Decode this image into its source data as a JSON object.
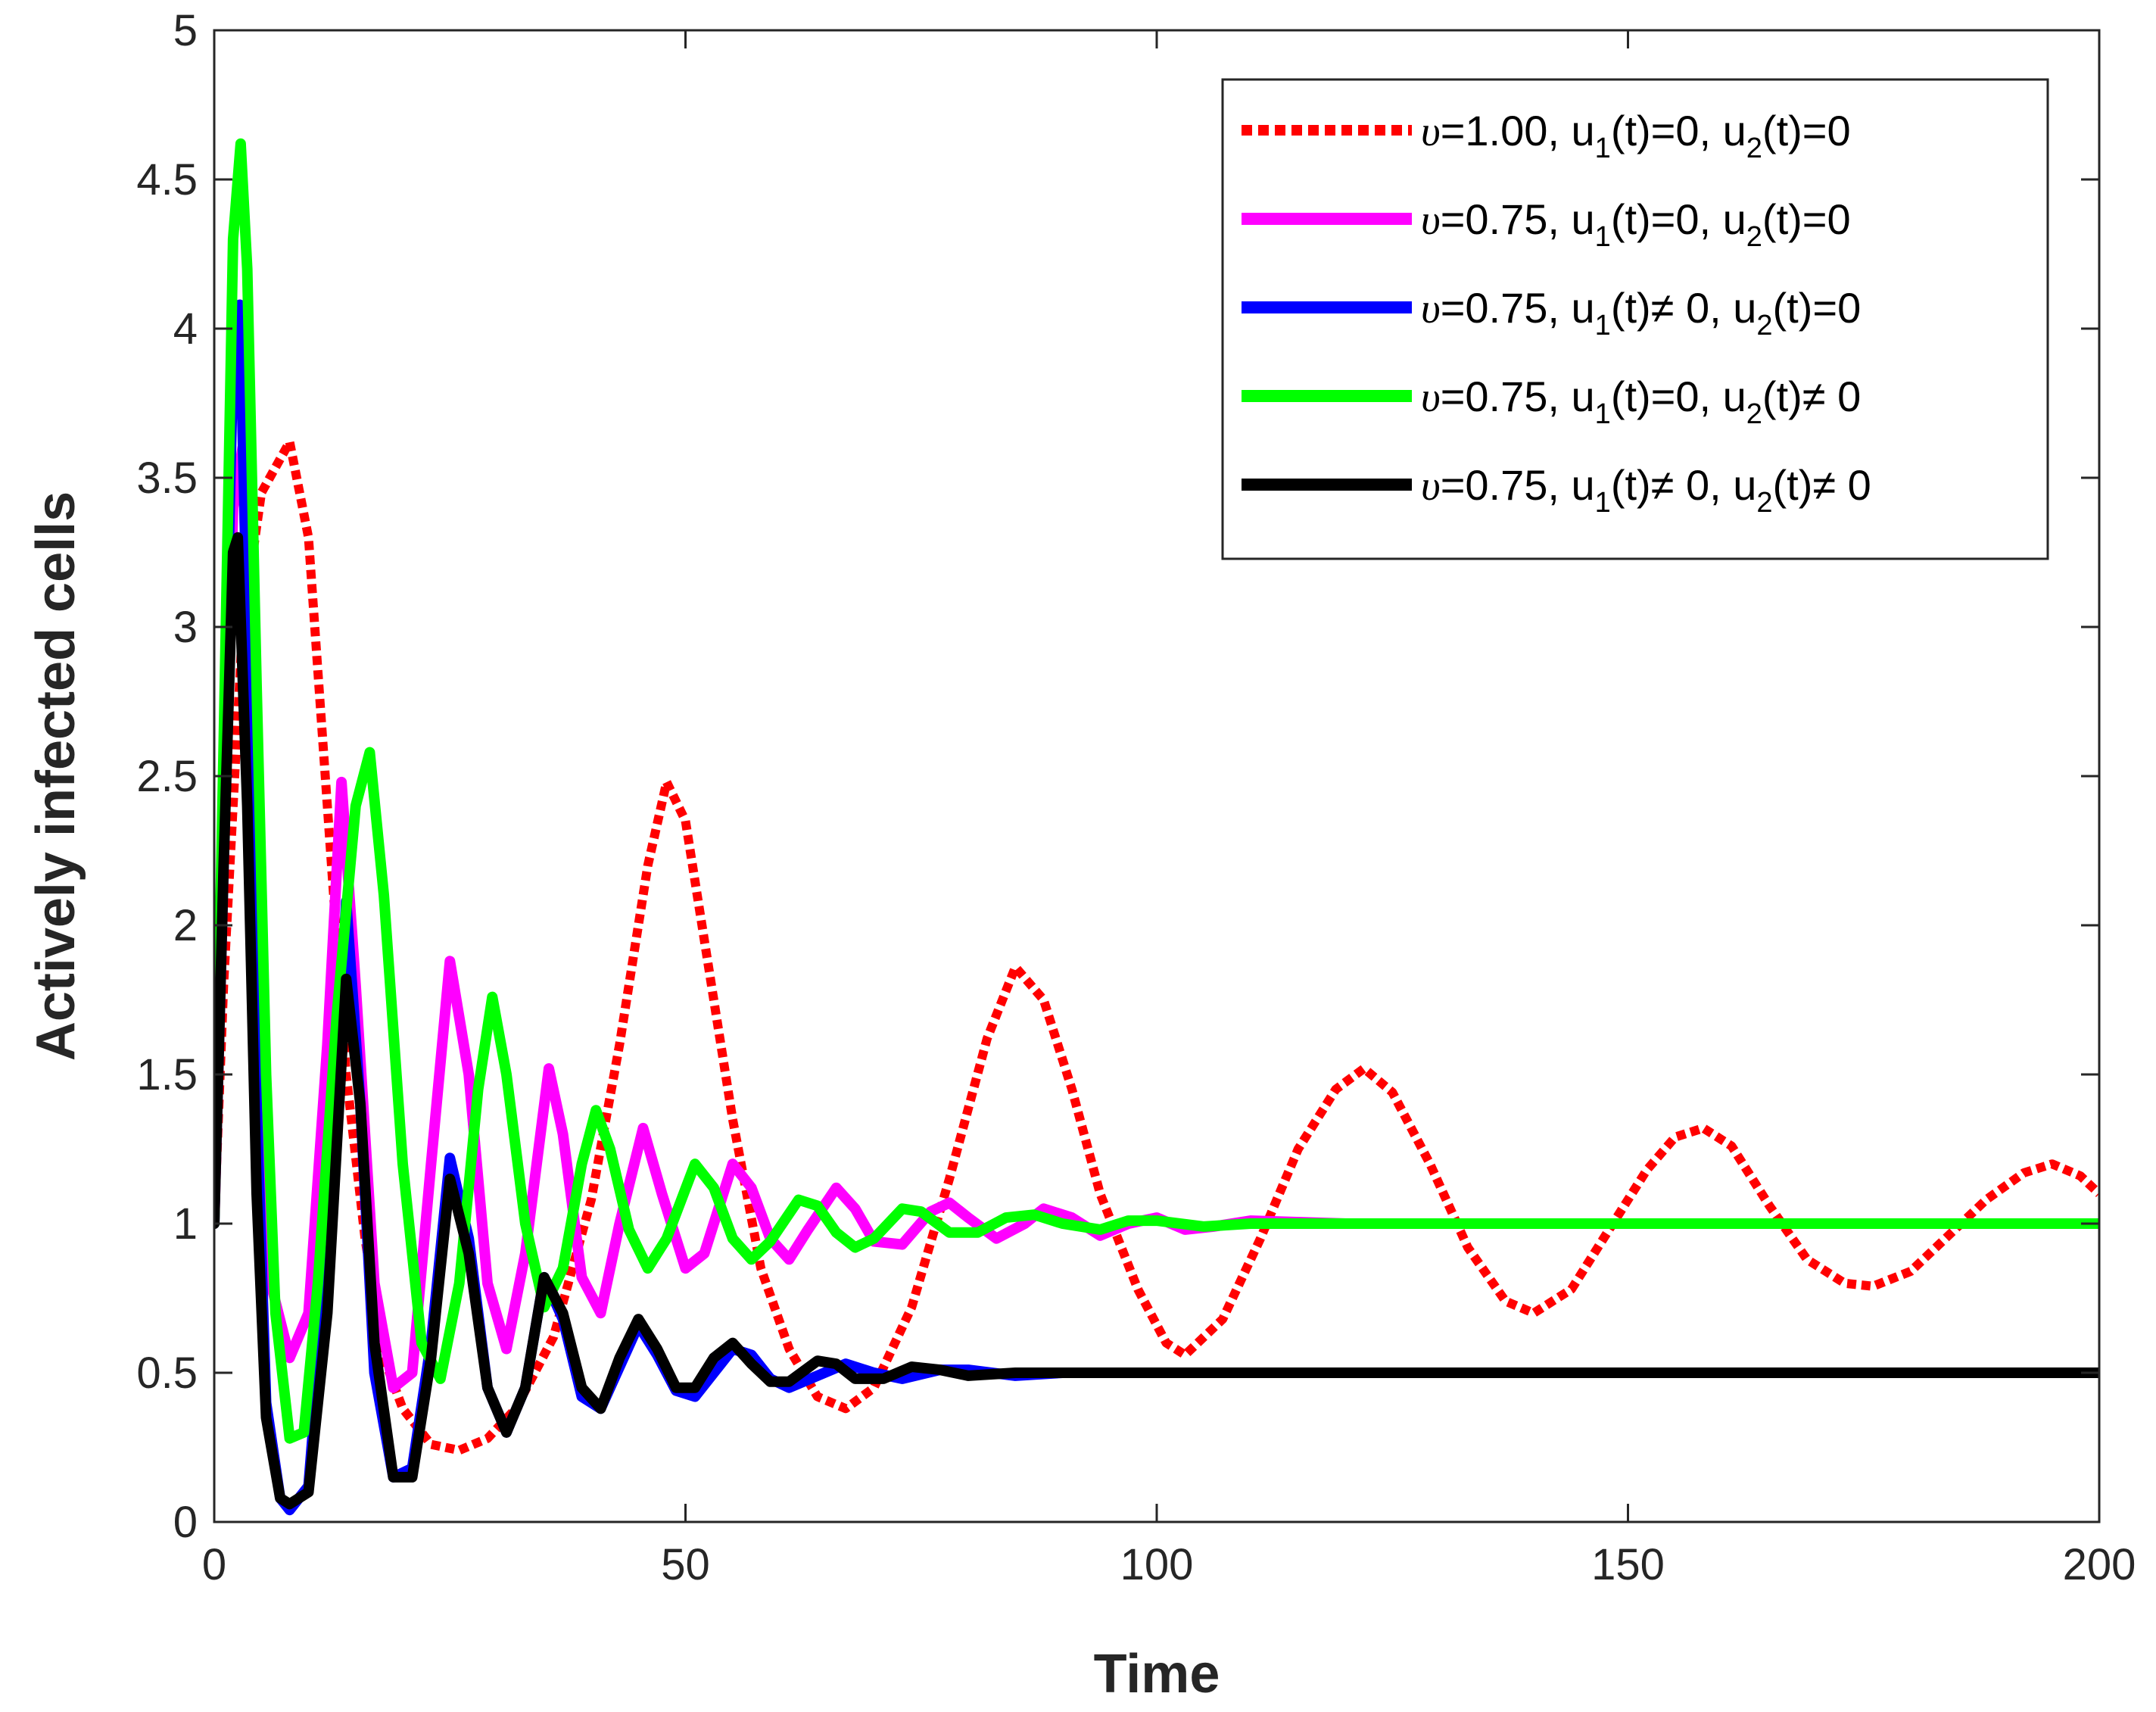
{
  "chart_data": {
    "type": "line",
    "title": "",
    "xlabel": "Time",
    "ylabel": "Actively infected cells",
    "xlim": [
      0,
      200
    ],
    "ylim": [
      0,
      5
    ],
    "xticks": [
      0,
      50,
      100,
      150,
      200
    ],
    "xtick_labels": [
      "0",
      "50",
      "100",
      "150",
      "200"
    ],
    "yticks": [
      0,
      0.5,
      1,
      1.5,
      2,
      2.5,
      3,
      3.5,
      4,
      4.5,
      5
    ],
    "ytick_labels": [
      "0",
      "0.5",
      "1",
      "1.5",
      "2",
      "2.5",
      "3",
      "3.5",
      "4",
      "4.5",
      "5"
    ],
    "grid": false,
    "legend_position": "top-right",
    "series": [
      {
        "name": "υ=1.00, u1(t)=0, u2(t)=0",
        "legend": {
          "nu": "υ",
          "pre": "=1.00, u",
          "sub1": "1",
          "mid": "(t)=0, u",
          "sub2": "2",
          "post": "(t)=0"
        },
        "color": "#ff0000",
        "style": "dotted",
        "points": [
          [
            0,
            1.0
          ],
          [
            1,
            1.8
          ],
          [
            3,
            3.0
          ],
          [
            5,
            3.45
          ],
          [
            8,
            3.62
          ],
          [
            10,
            3.3
          ],
          [
            12,
            2.4
          ],
          [
            14,
            1.5
          ],
          [
            16,
            0.95
          ],
          [
            18,
            0.55
          ],
          [
            20,
            0.38
          ],
          [
            23,
            0.26
          ],
          [
            26,
            0.24
          ],
          [
            29,
            0.28
          ],
          [
            32,
            0.38
          ],
          [
            36,
            0.62
          ],
          [
            40,
            1.08
          ],
          [
            43,
            1.6
          ],
          [
            46,
            2.2
          ],
          [
            48,
            2.48
          ],
          [
            50,
            2.35
          ],
          [
            52,
            1.95
          ],
          [
            55,
            1.35
          ],
          [
            58,
            0.85
          ],
          [
            61,
            0.58
          ],
          [
            64,
            0.42
          ],
          [
            67,
            0.38
          ],
          [
            70,
            0.45
          ],
          [
            74,
            0.72
          ],
          [
            78,
            1.15
          ],
          [
            82,
            1.62
          ],
          [
            85,
            1.86
          ],
          [
            88,
            1.75
          ],
          [
            91,
            1.45
          ],
          [
            94,
            1.1
          ],
          [
            98,
            0.78
          ],
          [
            101,
            0.6
          ],
          [
            103,
            0.56
          ],
          [
            107,
            0.68
          ],
          [
            111,
            0.95
          ],
          [
            115,
            1.25
          ],
          [
            119,
            1.45
          ],
          [
            122,
            1.52
          ],
          [
            125,
            1.44
          ],
          [
            129,
            1.2
          ],
          [
            133,
            0.92
          ],
          [
            137,
            0.74
          ],
          [
            140,
            0.7
          ],
          [
            144,
            0.78
          ],
          [
            148,
            0.98
          ],
          [
            152,
            1.18
          ],
          [
            155,
            1.29
          ],
          [
            158,
            1.32
          ],
          [
            161,
            1.26
          ],
          [
            165,
            1.06
          ],
          [
            169,
            0.88
          ],
          [
            173,
            0.8
          ],
          [
            176,
            0.79
          ],
          [
            180,
            0.84
          ],
          [
            184,
            0.96
          ],
          [
            188,
            1.08
          ],
          [
            192,
            1.17
          ],
          [
            195,
            1.2
          ],
          [
            198,
            1.16
          ],
          [
            200,
            1.1
          ]
        ]
      },
      {
        "name": "υ=0.75, u1(t)=0, u2(t)=0",
        "legend": {
          "nu": "υ",
          "pre": "=0.75, u",
          "sub1": "1",
          "mid": "(t)=0, u",
          "sub2": "2",
          "post": "(t)=0"
        },
        "color": "#ff00ff",
        "style": "solid",
        "points": [
          [
            0,
            1.0
          ],
          [
            1,
            2.2
          ],
          [
            2,
            3.4
          ],
          [
            3,
            3.6
          ],
          [
            4,
            2.5
          ],
          [
            5,
            1.4
          ],
          [
            6,
            0.8
          ],
          [
            8,
            0.55
          ],
          [
            10,
            0.7
          ],
          [
            12,
            1.6
          ],
          [
            13.5,
            2.48
          ],
          [
            15,
            1.8
          ],
          [
            17,
            0.8
          ],
          [
            19,
            0.45
          ],
          [
            21,
            0.5
          ],
          [
            23,
            1.2
          ],
          [
            25,
            1.88
          ],
          [
            27,
            1.5
          ],
          [
            29,
            0.8
          ],
          [
            31,
            0.58
          ],
          [
            33,
            0.9
          ],
          [
            35.5,
            1.52
          ],
          [
            37,
            1.3
          ],
          [
            39,
            0.82
          ],
          [
            41,
            0.7
          ],
          [
            43,
            1.0
          ],
          [
            45.5,
            1.32
          ],
          [
            47.5,
            1.1
          ],
          [
            50,
            0.85
          ],
          [
            52,
            0.9
          ],
          [
            55,
            1.2
          ],
          [
            57,
            1.12
          ],
          [
            59,
            0.95
          ],
          [
            61,
            0.88
          ],
          [
            63,
            0.98
          ],
          [
            66,
            1.12
          ],
          [
            68,
            1.05
          ],
          [
            70,
            0.94
          ],
          [
            73,
            0.93
          ],
          [
            76,
            1.04
          ],
          [
            78,
            1.07
          ],
          [
            80,
            1.02
          ],
          [
            83,
            0.95
          ],
          [
            86,
            1.0
          ],
          [
            88,
            1.05
          ],
          [
            91,
            1.02
          ],
          [
            94,
            0.96
          ],
          [
            97,
            1.0
          ],
          [
            100,
            1.02
          ],
          [
            103,
            0.98
          ],
          [
            106,
            0.99
          ],
          [
            110,
            1.01
          ],
          [
            120,
            1.0
          ],
          [
            200,
            1.0
          ]
        ]
      },
      {
        "name": "υ=0.75, u1(t)≠ 0, u2(t)=0",
        "legend": {
          "nu": "υ",
          "pre": "=0.75, u",
          "sub1": "1",
          "mid": "(t)≠ 0, u",
          "sub2": "2",
          "post": "(t)=0"
        },
        "color": "#0000ff",
        "style": "solid",
        "points": [
          [
            0,
            1.0
          ],
          [
            1,
            2.5
          ],
          [
            2,
            3.9
          ],
          [
            2.7,
            4.08
          ],
          [
            3.5,
            3.0
          ],
          [
            4.5,
            1.4
          ],
          [
            5.5,
            0.4
          ],
          [
            7,
            0.08
          ],
          [
            8,
            0.04
          ],
          [
            10,
            0.12
          ],
          [
            12,
            0.9
          ],
          [
            14,
            2.08
          ],
          [
            15.5,
            1.4
          ],
          [
            17,
            0.5
          ],
          [
            19,
            0.15
          ],
          [
            21,
            0.18
          ],
          [
            23,
            0.6
          ],
          [
            25,
            1.22
          ],
          [
            27,
            0.95
          ],
          [
            29,
            0.45
          ],
          [
            31,
            0.3
          ],
          [
            33,
            0.45
          ],
          [
            35,
            0.82
          ],
          [
            37,
            0.68
          ],
          [
            39,
            0.42
          ],
          [
            41,
            0.38
          ],
          [
            43,
            0.52
          ],
          [
            45,
            0.66
          ],
          [
            47,
            0.56
          ],
          [
            49,
            0.44
          ],
          [
            51,
            0.42
          ],
          [
            53,
            0.5
          ],
          [
            55,
            0.58
          ],
          [
            57,
            0.56
          ],
          [
            59,
            0.48
          ],
          [
            61,
            0.45
          ],
          [
            64,
            0.49
          ],
          [
            67,
            0.53
          ],
          [
            70,
            0.5
          ],
          [
            73,
            0.48
          ],
          [
            77,
            0.51
          ],
          [
            80,
            0.51
          ],
          [
            85,
            0.49
          ],
          [
            90,
            0.5
          ],
          [
            100,
            0.5
          ],
          [
            200,
            0.5
          ]
        ]
      },
      {
        "name": "υ=0.75, u1(t)=0, u2(t)≠ 0",
        "legend": {
          "nu": "υ",
          "pre": "=0.75, u",
          "sub1": "1",
          "mid": "(t)=0, u",
          "sub2": "2",
          "post": "(t)≠ 0"
        },
        "color": "#00ff00",
        "style": "solid",
        "points": [
          [
            0,
            1.0
          ],
          [
            1,
            2.6
          ],
          [
            2,
            4.3
          ],
          [
            2.8,
            4.62
          ],
          [
            3.5,
            4.2
          ],
          [
            4.5,
            2.8
          ],
          [
            5.5,
            1.5
          ],
          [
            6.5,
            0.7
          ],
          [
            8,
            0.28
          ],
          [
            9.5,
            0.3
          ],
          [
            11,
            0.8
          ],
          [
            13,
            1.7
          ],
          [
            15,
            2.4
          ],
          [
            16.5,
            2.58
          ],
          [
            18,
            2.1
          ],
          [
            20,
            1.2
          ],
          [
            22,
            0.6
          ],
          [
            24,
            0.48
          ],
          [
            26,
            0.8
          ],
          [
            28,
            1.45
          ],
          [
            29.5,
            1.76
          ],
          [
            31,
            1.5
          ],
          [
            33,
            1.0
          ],
          [
            35,
            0.72
          ],
          [
            37,
            0.85
          ],
          [
            39,
            1.2
          ],
          [
            40.5,
            1.38
          ],
          [
            42,
            1.25
          ],
          [
            44,
            0.98
          ],
          [
            46,
            0.85
          ],
          [
            48,
            0.95
          ],
          [
            51,
            1.2
          ],
          [
            53,
            1.12
          ],
          [
            55,
            0.95
          ],
          [
            57,
            0.88
          ],
          [
            59,
            0.94
          ],
          [
            62,
            1.08
          ],
          [
            64,
            1.06
          ],
          [
            66,
            0.97
          ],
          [
            68,
            0.92
          ],
          [
            70,
            0.95
          ],
          [
            73,
            1.05
          ],
          [
            75,
            1.04
          ],
          [
            78,
            0.97
          ],
          [
            81,
            0.97
          ],
          [
            84,
            1.02
          ],
          [
            87,
            1.03
          ],
          [
            90,
            1.0
          ],
          [
            94,
            0.98
          ],
          [
            97,
            1.01
          ],
          [
            100,
            1.01
          ],
          [
            105,
            0.99
          ],
          [
            110,
            1.0
          ],
          [
            200,
            1.0
          ]
        ]
      },
      {
        "name": "υ=0.75, u1(t)≠ 0, u2(t)≠ 0",
        "legend": {
          "nu": "υ",
          "pre": "=0.75, u",
          "sub1": "1",
          "mid": "(t)≠ 0, u",
          "sub2": "2",
          "post": "(t)≠ 0"
        },
        "color": "#000000",
        "style": "solid",
        "points": [
          [
            0,
            1.0
          ],
          [
            1,
            2.2
          ],
          [
            2,
            3.25
          ],
          [
            2.5,
            3.3
          ],
          [
            3.5,
            2.4
          ],
          [
            4.5,
            1.1
          ],
          [
            5.5,
            0.35
          ],
          [
            7,
            0.08
          ],
          [
            8,
            0.06
          ],
          [
            10,
            0.1
          ],
          [
            12,
            0.7
          ],
          [
            14,
            1.82
          ],
          [
            15.5,
            1.4
          ],
          [
            17,
            0.6
          ],
          [
            19,
            0.15
          ],
          [
            21,
            0.15
          ],
          [
            23,
            0.55
          ],
          [
            25,
            1.15
          ],
          [
            27,
            0.9
          ],
          [
            29,
            0.45
          ],
          [
            31,
            0.3
          ],
          [
            33,
            0.45
          ],
          [
            35,
            0.82
          ],
          [
            37,
            0.7
          ],
          [
            39,
            0.45
          ],
          [
            41,
            0.38
          ],
          [
            43,
            0.55
          ],
          [
            45,
            0.68
          ],
          [
            47,
            0.58
          ],
          [
            49,
            0.45
          ],
          [
            51,
            0.45
          ],
          [
            53,
            0.55
          ],
          [
            55,
            0.6
          ],
          [
            57,
            0.53
          ],
          [
            59,
            0.47
          ],
          [
            61,
            0.47
          ],
          [
            64,
            0.54
          ],
          [
            66,
            0.53
          ],
          [
            68,
            0.48
          ],
          [
            71,
            0.48
          ],
          [
            74,
            0.52
          ],
          [
            77,
            0.51
          ],
          [
            80,
            0.49
          ],
          [
            85,
            0.5
          ],
          [
            90,
            0.5
          ],
          [
            200,
            0.5
          ]
        ]
      }
    ]
  }
}
